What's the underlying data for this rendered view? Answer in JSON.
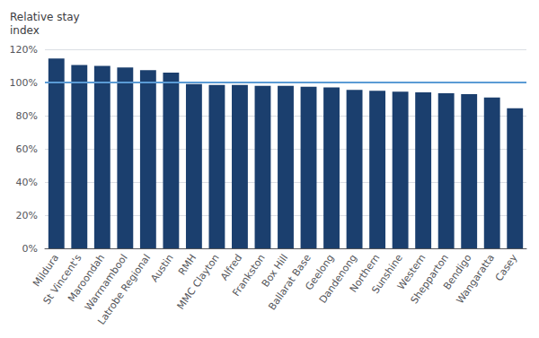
{
  "chart_data": {
    "type": "bar",
    "ylabel": "Relative stay\nindex",
    "categories": [
      "Mildura",
      "St Vincent's",
      "Maroondah",
      "Warrnambool",
      "Latrobe Regional",
      "Austin",
      "RMH",
      "MMC Clayton",
      "Alfred",
      "Frankston",
      "Box Hill",
      "Ballarat Base",
      "Geelong",
      "Dandenong",
      "Northern",
      "Sunshine",
      "Western",
      "Shepparton",
      "Bendigo",
      "Wangaratta",
      "Casey"
    ],
    "values": [
      114.5,
      110.5,
      110.0,
      109.0,
      107.5,
      106.0,
      99.0,
      98.5,
      98.5,
      98.0,
      98.0,
      97.5,
      97.0,
      95.5,
      95.0,
      94.5,
      94.0,
      93.5,
      93.0,
      91.0,
      84.5
    ],
    "color": "#1B3F6E",
    "reference_line": {
      "value": 100,
      "color": "#5B9BD5"
    },
    "ylim": [
      0,
      120
    ],
    "yticks": [
      {
        "value": 0,
        "label": "0%"
      },
      {
        "value": 20,
        "label": "20%"
      },
      {
        "value": 40,
        "label": "40%"
      },
      {
        "value": 60,
        "label": "60%"
      },
      {
        "value": 80,
        "label": "80%"
      },
      {
        "value": 100,
        "label": "100%"
      },
      {
        "value": 120,
        "label": "120%"
      }
    ],
    "grid": true
  }
}
